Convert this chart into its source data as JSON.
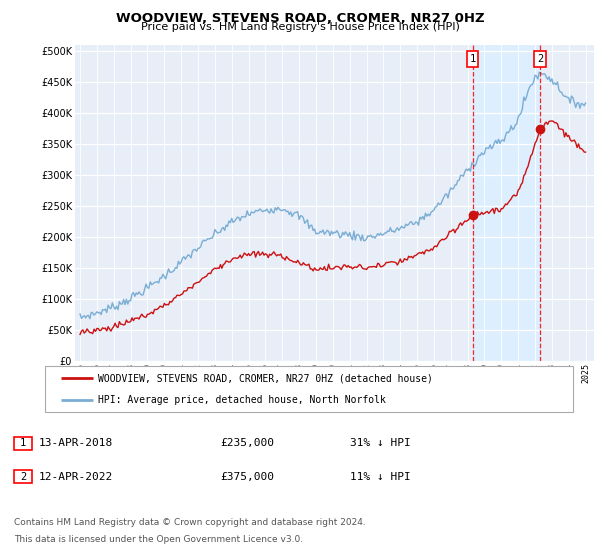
{
  "title": "WOODVIEW, STEVENS ROAD, CROMER, NR27 0HZ",
  "subtitle": "Price paid vs. HM Land Registry's House Price Index (HPI)",
  "ytick_values": [
    0,
    50000,
    100000,
    150000,
    200000,
    250000,
    300000,
    350000,
    400000,
    450000,
    500000
  ],
  "xlim_start": 1994.7,
  "xlim_end": 2025.5,
  "ylim_min": 0,
  "ylim_max": 510000,
  "hpi_color": "#7aadd4",
  "price_color": "#cc1111",
  "shade_color": "#ddeeff",
  "t1_date": 2018.29,
  "t1_price": 235000,
  "t2_date": 2022.29,
  "t2_price": 375000,
  "legend_property": "WOODVIEW, STEVENS ROAD, CROMER, NR27 0HZ (detached house)",
  "legend_hpi": "HPI: Average price, detached house, North Norfolk",
  "footnote3": "Contains HM Land Registry data © Crown copyright and database right 2024.",
  "footnote4": "This data is licensed under the Open Government Licence v3.0.",
  "xtick_years": [
    1995,
    1996,
    1997,
    1998,
    1999,
    2000,
    2001,
    2002,
    2003,
    2004,
    2005,
    2006,
    2007,
    2008,
    2009,
    2010,
    2011,
    2012,
    2013,
    2014,
    2015,
    2016,
    2017,
    2018,
    2019,
    2020,
    2021,
    2022,
    2023,
    2024,
    2025
  ],
  "bg_color": "#e8eef8",
  "grid_color": "#ffffff"
}
